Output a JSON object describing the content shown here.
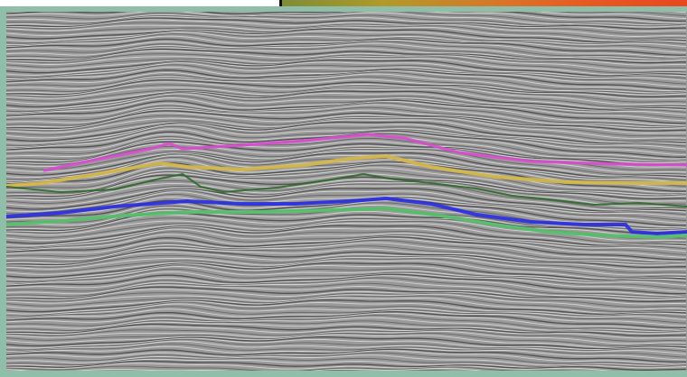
{
  "colorbar": {
    "labels": [
      "",
      "",
      ""
    ]
  },
  "seismic_view": {
    "background": "#9a9a9a",
    "horizons": [
      {
        "name": "horizon-magenta",
        "color": "#d94bd0"
      },
      {
        "name": "horizon-yellow",
        "color": "#d6b94a"
      },
      {
        "name": "horizon-darkgreen",
        "color": "#2f6b2a"
      },
      {
        "name": "horizon-blue",
        "color": "#2a2fe0"
      },
      {
        "name": "horizon-green",
        "color": "#55c06a"
      }
    ]
  }
}
